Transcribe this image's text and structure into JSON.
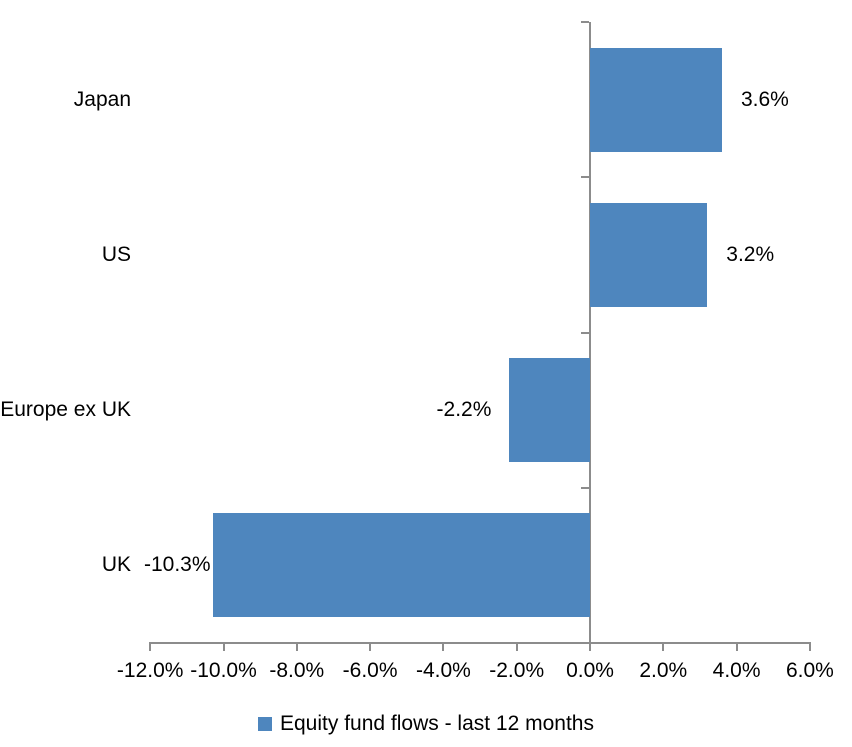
{
  "chart_data": {
    "type": "bar",
    "orientation": "horizontal",
    "title": "",
    "categories": [
      "Japan",
      "US",
      "Europe ex UK",
      "UK"
    ],
    "values": [
      3.6,
      3.2,
      -2.2,
      -10.3
    ],
    "data_labels": [
      "3.6%",
      "3.2%",
      "-2.2%",
      "-10.3%"
    ],
    "series_name": "Equity fund flows - last 12 months",
    "x_ticks": [
      -12,
      -10,
      -8,
      -6,
      -4,
      -2,
      0,
      2,
      4,
      6
    ],
    "x_tick_labels": [
      "-12.0%",
      "-10.0%",
      "-8.0%",
      "-6.0%",
      "-4.0%",
      "-2.0%",
      "0.0%",
      "2.0%",
      "4.0%",
      "6.0%"
    ],
    "xlim": [
      -12,
      6
    ],
    "grid": false,
    "legend_position": "bottom",
    "bar_color": "#4E86BE",
    "axis_color": "#8C8C8C",
    "text_color": "#000000",
    "background_color": "#FFFFFF"
  }
}
